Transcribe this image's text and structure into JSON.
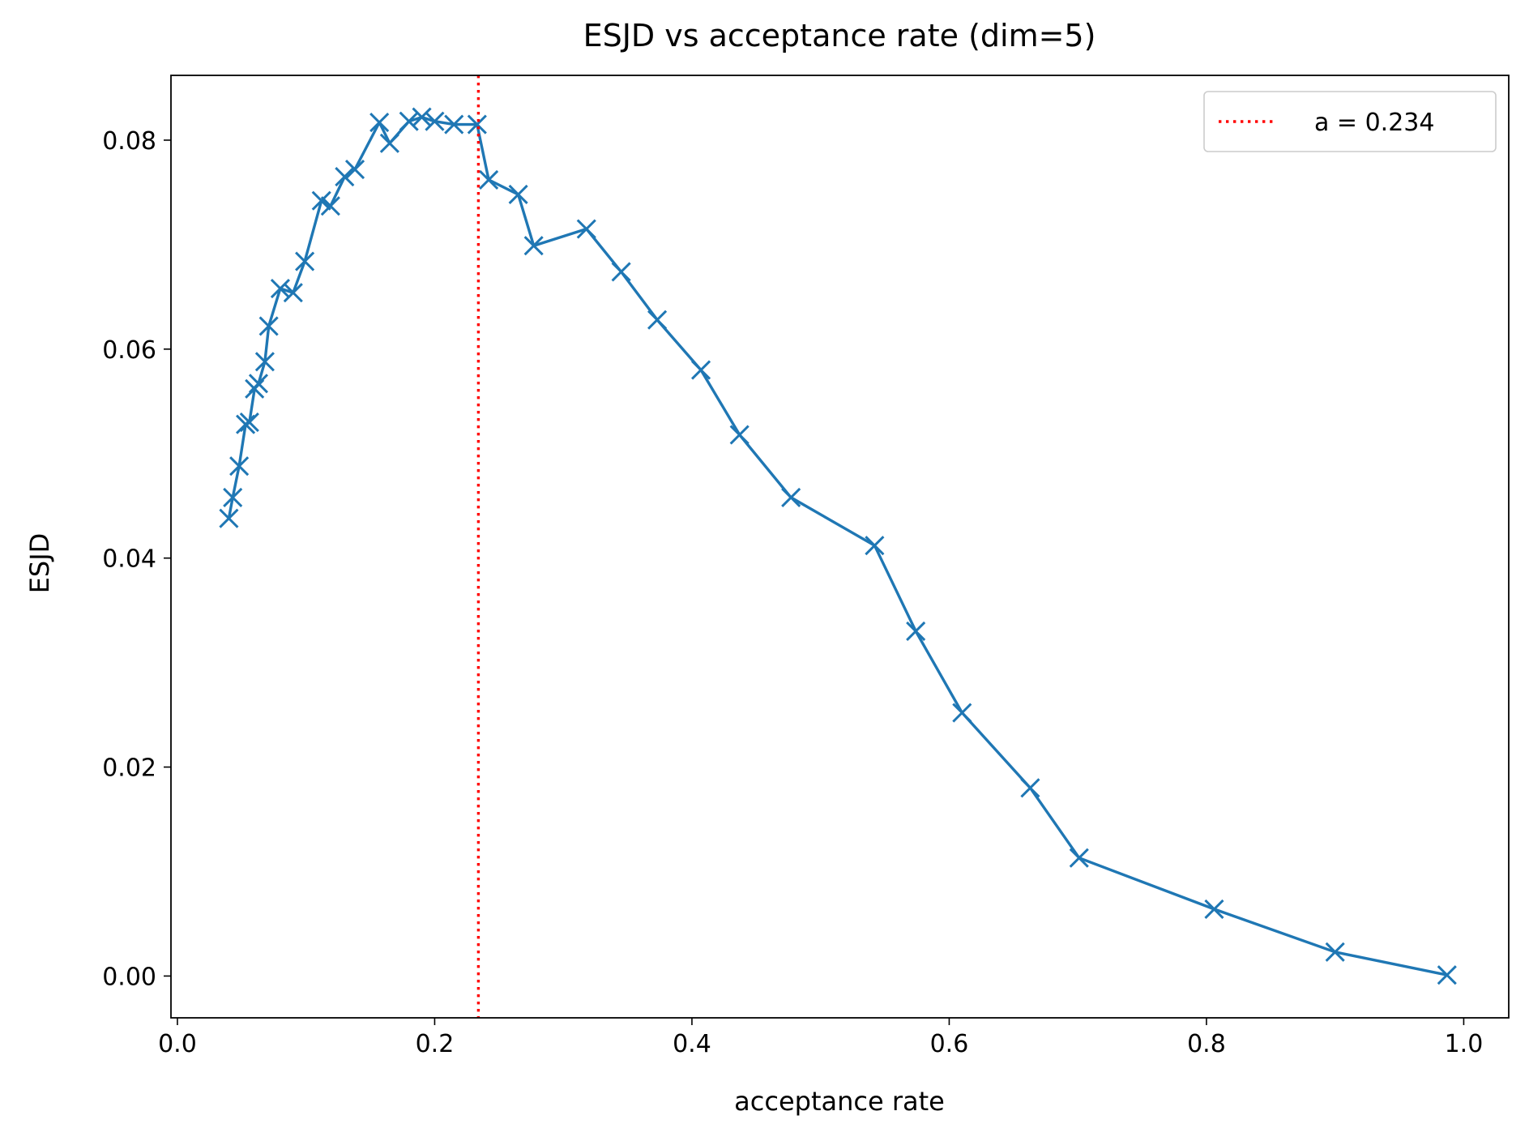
{
  "chart_data": {
    "type": "line",
    "title": "ESJD vs acceptance rate (dim=5)",
    "xlabel": "acceptance rate",
    "ylabel": "ESJD",
    "xlim": [
      -0.005,
      1.035
    ],
    "ylim": [
      -0.004,
      0.0862
    ],
    "xticks": [
      0.0,
      0.2,
      0.4,
      0.6,
      0.8,
      1.0
    ],
    "xtick_labels": [
      "0.0",
      "0.2",
      "0.4",
      "0.6",
      "0.8",
      "1.0"
    ],
    "yticks": [
      0.0,
      0.02,
      0.04,
      0.06,
      0.08
    ],
    "ytick_labels": [
      "0.00",
      "0.02",
      "0.04",
      "0.06",
      "0.08"
    ],
    "grid": false,
    "legend": {
      "position": "top-right",
      "entries": [
        "a = 0.234"
      ]
    },
    "series": [
      {
        "name": "ESJD",
        "color": "#1f77b4",
        "marker": "x",
        "x": [
          0.04,
          0.043,
          0.048,
          0.053,
          0.056,
          0.06,
          0.063,
          0.068,
          0.071,
          0.08,
          0.09,
          0.099,
          0.112,
          0.119,
          0.13,
          0.138,
          0.157,
          0.165,
          0.18,
          0.19,
          0.2,
          0.215,
          0.233,
          0.242,
          0.265,
          0.277,
          0.318,
          0.345,
          0.373,
          0.407,
          0.437,
          0.477,
          0.542,
          0.574,
          0.61,
          0.663,
          0.701,
          0.806,
          0.9,
          0.987
        ],
        "y": [
          0.0438,
          0.0458,
          0.0488,
          0.0528,
          0.053,
          0.0562,
          0.0567,
          0.0588,
          0.0622,
          0.0658,
          0.0654,
          0.0684,
          0.0742,
          0.0737,
          0.0765,
          0.0772,
          0.0817,
          0.0797,
          0.0818,
          0.0822,
          0.0818,
          0.0815,
          0.0815,
          0.0762,
          0.0748,
          0.0699,
          0.0715,
          0.0674,
          0.0628,
          0.058,
          0.0518,
          0.0458,
          0.0412,
          0.033,
          0.0252,
          0.018,
          0.0113,
          0.0064,
          0.0023,
          0.0001
        ]
      }
    ],
    "reference_lines": [
      {
        "orientation": "vertical",
        "x": 0.234,
        "color": "#ff0000",
        "style": "dotted",
        "label": "a = 0.234"
      }
    ]
  }
}
